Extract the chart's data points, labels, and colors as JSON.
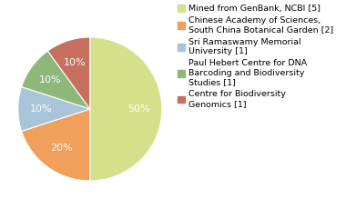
{
  "slices": [
    {
      "label": "Mined from GenBank, NCBI [5]",
      "value": 50,
      "color": "#d4e08a"
    },
    {
      "label": "Chinese Academy of Sciences,\nSouth China Botanical Garden [2]",
      "value": 20,
      "color": "#f0a05a"
    },
    {
      "label": "Sri Ramaswamy Memorial\nUniversity [1]",
      "value": 10,
      "color": "#a8c4d8"
    },
    {
      "label": "Paul Hebert Centre for DNA\nBarcoding and Biodiversity\nStudies [1]",
      "value": 10,
      "color": "#8db87a"
    },
    {
      "label": "Centre for Biodiversity\nGenomics [1]",
      "value": 10,
      "color": "#c87060"
    }
  ],
  "legend_labels": [
    "Mined from GenBank, NCBI [5]",
    "Chinese Academy of Sciences,\nSouth China Botanical Garden [2]",
    "Sri Ramaswamy Memorial\nUniversity [1]",
    "Paul Hebert Centre for DNA\nBarcoding and Biodiversity\nStudies [1]",
    "Centre for Biodiversity\nGenomics [1]"
  ],
  "text_color": "#ffffff",
  "background_color": "#ffffff",
  "startangle": 90,
  "pct_fontsize": 8.0,
  "legend_fontsize": 6.8
}
